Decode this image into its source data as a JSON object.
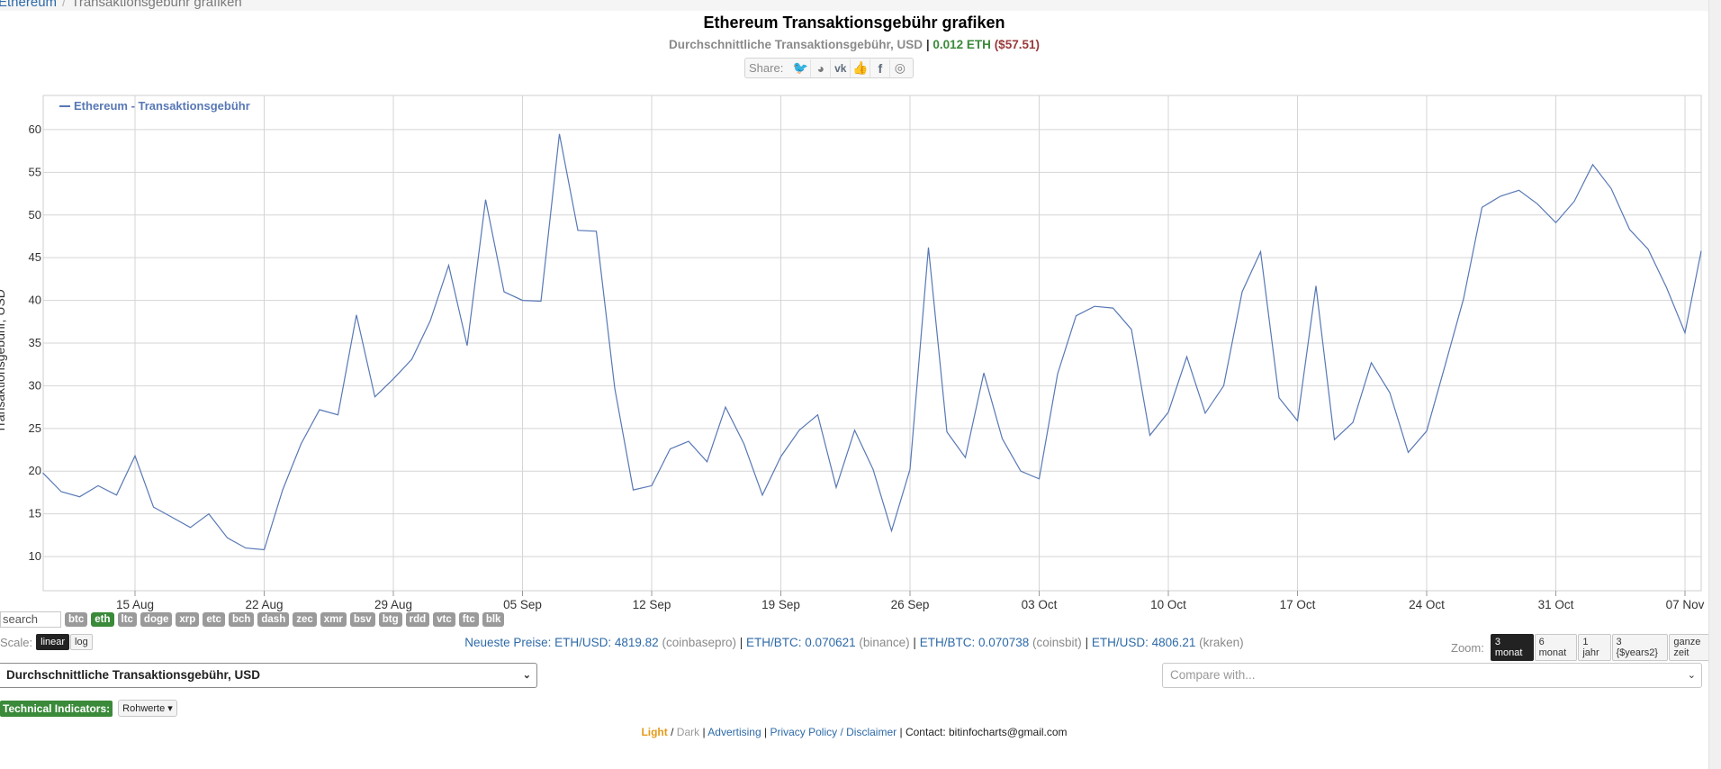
{
  "breadcrumb": {
    "root": "Ethereum",
    "separator": "/",
    "current": "Transaktionsgebühr grafiken"
  },
  "title": "Ethereum Transaktionsgebühr grafiken",
  "subtitle": {
    "metric": "Durchschnittliche Transaktionsgebühr, USD",
    "separator": "|",
    "eth": "0.012 ETH",
    "usd": "($57.51)"
  },
  "share": {
    "label": "Share:",
    "icons": [
      {
        "name": "twitter-icon",
        "glyph": "🐦"
      },
      {
        "name": "reddit-icon",
        "glyph": "◕"
      },
      {
        "name": "vk-icon",
        "glyph": "vk"
      },
      {
        "name": "like-icon",
        "glyph": "👍"
      },
      {
        "name": "facebook-icon",
        "glyph": "f"
      },
      {
        "name": "weibo-icon",
        "glyph": "◎"
      }
    ]
  },
  "chart_data": {
    "type": "line",
    "title": "",
    "ylabel": "Transaktionsgebühr, USD",
    "ylim": [
      6,
      64
    ],
    "yticks": [
      10,
      15,
      20,
      25,
      30,
      35,
      40,
      45,
      50,
      55,
      60
    ],
    "xticks": [
      "15 Aug",
      "22 Aug",
      "29 Aug",
      "05 Sep",
      "12 Sep",
      "19 Sep",
      "26 Sep",
      "03 Oct",
      "10 Oct",
      "17 Oct",
      "24 Oct",
      "31 Oct",
      "07 Nov"
    ],
    "grid": true,
    "legend": "top-left",
    "series": [
      {
        "name": "Ethereum - Transaktionsgebühr",
        "color": "#5878b5",
        "start": "2021-08-10",
        "values": [
          19.8,
          17.6,
          17.0,
          18.3,
          17.2,
          21.8,
          15.8,
          14.6,
          13.4,
          15.0,
          12.2,
          11.0,
          10.8,
          17.8,
          23.2,
          27.2,
          26.6,
          38.3,
          28.7,
          30.8,
          33.1,
          37.6,
          44.1,
          34.7,
          51.8,
          41.0,
          40.0,
          39.9,
          59.5,
          48.2,
          48.1,
          29.7,
          17.8,
          18.3,
          22.6,
          23.5,
          21.1,
          27.5,
          23.2,
          17.2,
          21.7,
          24.8,
          26.6,
          18.1,
          24.8,
          20.2,
          13.0,
          20.2,
          46.2,
          24.6,
          21.6,
          31.5,
          23.8,
          20.0,
          19.1,
          31.4,
          38.2,
          39.3,
          39.1,
          36.6,
          24.2,
          26.9,
          33.4,
          26.8,
          30.0,
          41.0,
          45.7,
          28.6,
          25.9,
          41.7,
          23.7,
          25.7,
          32.7,
          29.2,
          22.2,
          24.7,
          32.4,
          40.2,
          50.9,
          52.2,
          52.9,
          51.3,
          49.1,
          51.6,
          55.9,
          53.1,
          48.3,
          46.0,
          41.5,
          36.2,
          45.8
        ]
      }
    ]
  },
  "coins": {
    "search_placeholder": "search",
    "items": [
      "btc",
      "eth",
      "ltc",
      "doge",
      "xrp",
      "etc",
      "bch",
      "dash",
      "zec",
      "xmr",
      "bsv",
      "btg",
      "rdd",
      "vtc",
      "ftc",
      "blk"
    ],
    "active": "eth"
  },
  "scale": {
    "label": "Scale:",
    "options": [
      "linear",
      "log"
    ],
    "selected": "linear"
  },
  "prices": {
    "label": "Neueste Preise:",
    "items": [
      {
        "pair": "ETH/USD: 4819.82",
        "source": "(coinbasepro)"
      },
      {
        "pair": "ETH/BTC: 0.070621",
        "source": "(binance)"
      },
      {
        "pair": "ETH/BTC: 0.070738",
        "source": "(coinsbit)"
      },
      {
        "pair": "ETH/USD: 4806.21",
        "source": "(kraken)"
      }
    ]
  },
  "zoom": {
    "label": "Zoom:",
    "options": [
      "3 monat",
      "6 monat",
      "1 jahr",
      "3 {$years2}",
      "ganze zeit"
    ],
    "selected": "3 monat"
  },
  "metric_select": {
    "value": "Durchschnittliche Transaktionsgebühr, USD"
  },
  "compare_select": {
    "placeholder": "Compare with..."
  },
  "technical": {
    "label": "Technical Indicators:",
    "button": "Rohwerte"
  },
  "footer": {
    "light": "Light",
    "slash": " / ",
    "dark": "Dark",
    "advertising": "Advertising",
    "privacy": "Privacy Policy / Disclaimer",
    "contact": "Contact: bitinfocharts@gmail.com"
  }
}
